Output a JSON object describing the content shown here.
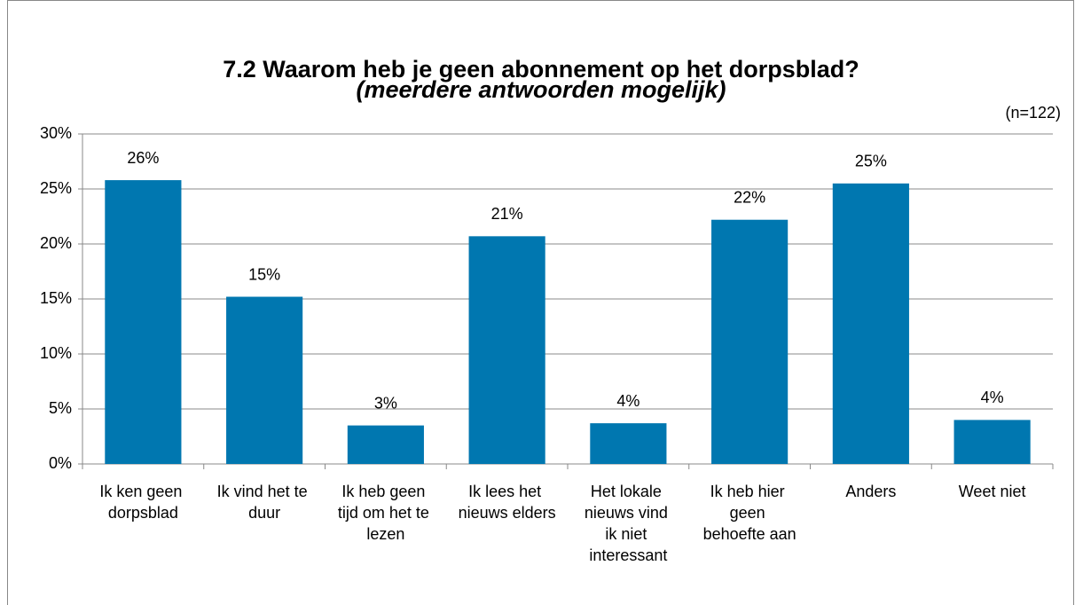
{
  "chart_data": {
    "type": "bar",
    "title": "7.2 Waarom heb je geen abonnement op het dorpsblad?",
    "subtitle": "(meerdere antwoorden mogelijk)",
    "annotation": "(n=122)",
    "categories": [
      "Ik ken geen dorpsblad",
      "Ik vind het te duur",
      "Ik heb geen tijd om het te lezen",
      "Ik lees het nieuws elders",
      "Het lokale nieuws vind ik niet interessant",
      "Ik heb hier geen behoefte aan",
      "Anders",
      "Weet niet"
    ],
    "values": [
      25.8,
      15.2,
      3.5,
      20.7,
      3.7,
      22.2,
      25.5,
      4.0
    ],
    "value_labels": [
      "26%",
      "15%",
      "3%",
      "21%",
      "4%",
      "22%",
      "25%",
      "4%"
    ],
    "color": "#0077b0",
    "ylim": [
      0,
      30
    ],
    "yticks": [
      {
        "value": 0,
        "label": "0%"
      },
      {
        "value": 5,
        "label": "5%"
      },
      {
        "value": 10,
        "label": "10%"
      },
      {
        "value": 15,
        "label": "15%"
      },
      {
        "value": 20,
        "label": "20%"
      },
      {
        "value": 25,
        "label": "25%"
      },
      {
        "value": 30,
        "label": "30%"
      }
    ],
    "grid": true
  }
}
